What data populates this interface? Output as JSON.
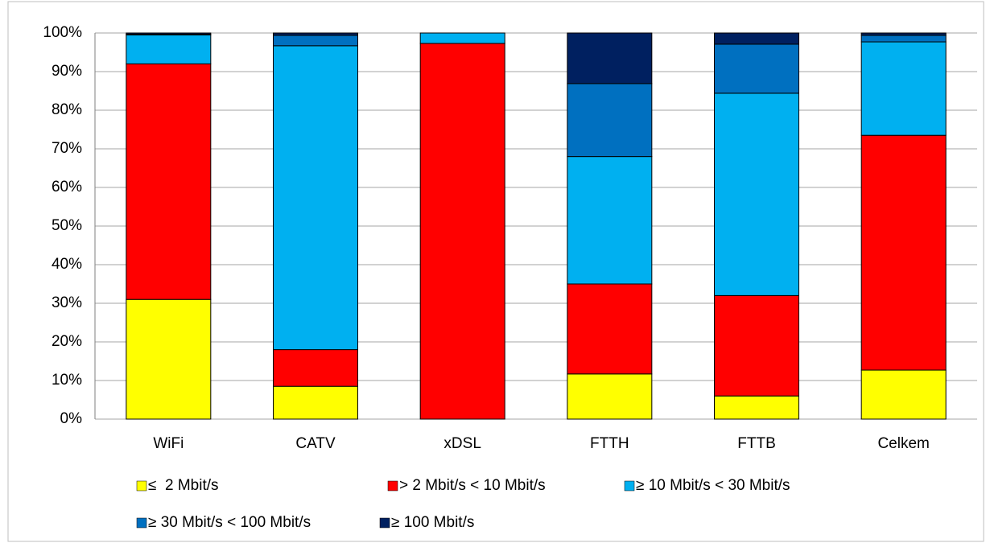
{
  "chart_data": {
    "type": "stacked_bar",
    "categories": [
      "WiFi",
      "CATV",
      "xDSL",
      "FTTH",
      "FTTB",
      "Celkem"
    ],
    "series": [
      {
        "name": "≤  2 Mbit/s",
        "color": "#ffff00",
        "values": [
          31,
          8.5,
          0,
          11.7,
          6,
          12.7
        ]
      },
      {
        "name": "> 2 Mbit/s < 10 Mbit/s",
        "color": "#ff0000",
        "values": [
          61,
          9.5,
          97.3,
          23.3,
          26,
          60.8
        ]
      },
      {
        "name": "≥ 10 Mbit/s < 30 Mbit/s",
        "color": "#00b0f0",
        "values": [
          7.5,
          78.7,
          2.7,
          33,
          52.4,
          24.2
        ]
      },
      {
        "name": "≥ 30 Mbit/s < 100 Mbit/s",
        "color": "#0070c0",
        "values": [
          0.2,
          2.7,
          0,
          18.9,
          12.7,
          1.7
        ]
      },
      {
        "name": "≥ 100 Mbit/s",
        "color": "#002060",
        "values": [
          0.3,
          0.6,
          0,
          13.1,
          2.9,
          0.6
        ]
      }
    ],
    "ylim": [
      0,
      100
    ],
    "yticks": [
      {
        "value": 0,
        "label": "0%"
      },
      {
        "value": 10,
        "label": "10%"
      },
      {
        "value": 20,
        "label": "20%"
      },
      {
        "value": 30,
        "label": "30%"
      },
      {
        "value": 40,
        "label": "40%"
      },
      {
        "value": 50,
        "label": "50%"
      },
      {
        "value": 60,
        "label": "60%"
      },
      {
        "value": 70,
        "label": "70%"
      },
      {
        "value": 80,
        "label": "80%"
      },
      {
        "value": 90,
        "label": "90%"
      },
      {
        "value": 100,
        "label": "100%"
      }
    ],
    "grid": true
  }
}
